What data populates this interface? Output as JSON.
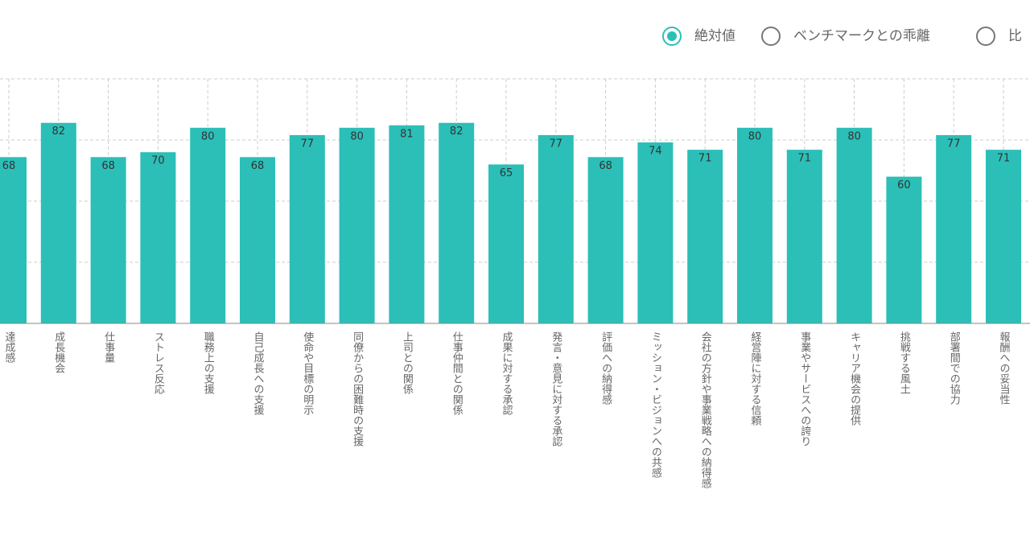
{
  "controls": {
    "options": [
      "絶対値",
      "ベンチマークとの乖離",
      "比"
    ],
    "selected": 0
  },
  "chart_data": {
    "type": "bar",
    "categories": [
      "達成感",
      "成長機会",
      "仕事量",
      "ストレス反応",
      "職務上の支援",
      "自己成長への支援",
      "使命や目標の明示",
      "同僚からの困難時の支援",
      "上司との関係",
      "仕事仲間との関係",
      "成果に対する承認",
      "発言・意見に対する承認",
      "評価への納得感",
      "ミッション・ビジョンへの共感",
      "会社の方針や事業戦略への納得感",
      "経営陣に対する信頼",
      "事業やサービスへの誇り",
      "キャリア機会の提供",
      "挑戦する風土",
      "部署間での協力",
      "報酬への妥当性"
    ],
    "values": [
      68,
      82,
      68,
      70,
      80,
      68,
      77,
      80,
      81,
      82,
      65,
      77,
      68,
      74,
      71,
      80,
      71,
      80,
      60,
      77,
      71
    ],
    "color": "#2bbfb8",
    "ylim": [
      0,
      100
    ],
    "yticks": [
      0,
      25,
      50,
      75,
      100
    ],
    "grid": true
  }
}
